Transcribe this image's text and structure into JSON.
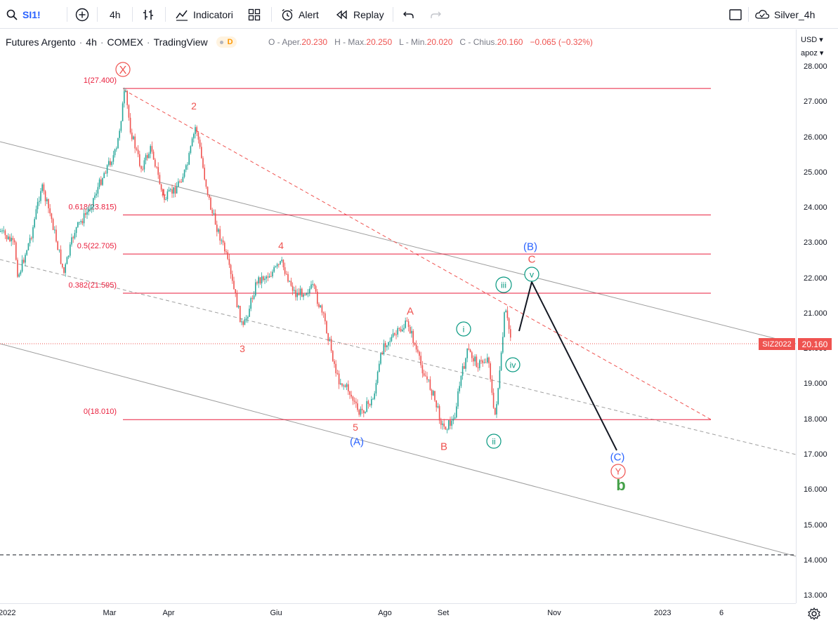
{
  "toolbar": {
    "symbol": "SI1!",
    "interval": "4h",
    "indicators_label": "Indicatori",
    "alert_label": "Alert",
    "replay_label": "Replay",
    "layout_name": "Silver_4h"
  },
  "legend": {
    "title": "Futures Argento",
    "interval": "4h",
    "exchange": "COMEX",
    "source": "TradingView",
    "badge": "D",
    "open_label": "O - Aper.",
    "open": "20.230",
    "high_label": "H - Max.",
    "high": "20.250",
    "low_label": "L - Min.",
    "low": "20.020",
    "close_label": "C - Chius.",
    "close": "20.160",
    "change": "−0.065 (−0.32%)"
  },
  "price_axis": {
    "currency": "USD",
    "currency_menu": "USD ▾",
    "scale_menu": "apoz ▾",
    "ticks": [
      "28.000",
      "27.000",
      "26.000",
      "25.000",
      "24.000",
      "23.000",
      "22.000",
      "21.000",
      "20.000",
      "19.000",
      "18.000",
      "17.000",
      "16.000",
      "15.000",
      "14.000",
      "13.000"
    ],
    "last_price": "20.160",
    "symbol_tag": "SIZ2022"
  },
  "time_axis": {
    "ticks": [
      "2022",
      "Mar",
      "Apr",
      "Giu",
      "Ago",
      "Set",
      "Nov",
      "2023",
      "6"
    ]
  },
  "fib_levels": [
    {
      "label": "1(27.400)",
      "value": 27.4
    },
    {
      "label": "0.618(23.815)",
      "value": 23.815
    },
    {
      "label": "0.5(22.705)",
      "value": 22.705
    },
    {
      "label": "0.382(21.595)",
      "value": 21.595
    },
    {
      "label": "0(18.010)",
      "value": 18.01
    }
  ],
  "wave_labels": [
    {
      "text": "X",
      "color": "#ef5350",
      "circled": true
    },
    {
      "text": "2",
      "color": "#ef5350"
    },
    {
      "text": "1",
      "color": "#ef5350"
    },
    {
      "text": "3",
      "color": "#ef5350"
    },
    {
      "text": "4",
      "color": "#ef5350"
    },
    {
      "text": "5",
      "color": "#ef5350"
    },
    {
      "text": "(A)",
      "color": "#2962ff"
    },
    {
      "text": "A",
      "color": "#ef5350"
    },
    {
      "text": "B",
      "color": "#ef5350"
    },
    {
      "text": "i",
      "color": "#089981",
      "circled": true
    },
    {
      "text": "ii",
      "color": "#089981",
      "circled": true
    },
    {
      "text": "iii",
      "color": "#089981",
      "circled": true
    },
    {
      "text": "iv",
      "color": "#089981",
      "circled": true
    },
    {
      "text": "v",
      "color": "#089981",
      "circled": true
    },
    {
      "text": "(B)",
      "color": "#2962ff"
    },
    {
      "text": "C",
      "color": "#ef5350"
    },
    {
      "text": "(C)",
      "color": "#2962ff"
    },
    {
      "text": "Y",
      "color": "#ef5350",
      "circled": true
    },
    {
      "text": "b",
      "color": "#43a047"
    }
  ],
  "colors": {
    "up": "#26a69a",
    "down": "#ef5350",
    "fib": "#e91e3c",
    "channel": "#9e9e9e",
    "projection": "#131722"
  }
}
